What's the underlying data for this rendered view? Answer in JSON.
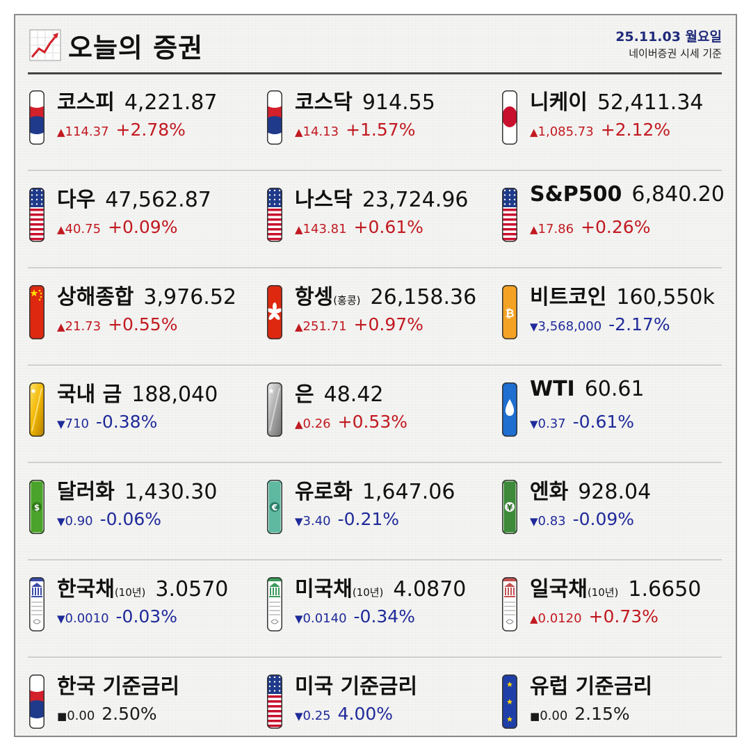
{
  "header": {
    "title": "오늘의 증권",
    "date": "25.11.03 월요일",
    "source": "네이버증권 시세 기준"
  },
  "items": [
    {
      "name": "코스피",
      "suffix": "",
      "value": "4,221.87",
      "arrow": "▲",
      "change": "114.37",
      "pct": "+2.78%",
      "dir": "up",
      "icon": "korea-flag-icon"
    },
    {
      "name": "코스닥",
      "suffix": "",
      "value": "914.55",
      "arrow": "▲",
      "change": "14.13",
      "pct": "+1.57%",
      "dir": "up",
      "icon": "korea-flag-icon"
    },
    {
      "name": "니케이",
      "suffix": "",
      "value": "52,411.34",
      "arrow": "▲",
      "change": "1,085.73",
      "pct": "+2.12%",
      "dir": "up",
      "icon": "japan-flag-icon"
    },
    {
      "name": "다우",
      "suffix": "",
      "value": "47,562.87",
      "arrow": "▲",
      "change": "40.75",
      "pct": "+0.09%",
      "dir": "up",
      "icon": "usa-flag-icon"
    },
    {
      "name": "나스닥",
      "suffix": "",
      "value": "23,724.96",
      "arrow": "▲",
      "change": "143.81",
      "pct": "+0.61%",
      "dir": "up",
      "icon": "usa-flag-icon"
    },
    {
      "name": "S&P500",
      "suffix": "",
      "value": "6,840.20",
      "arrow": "▲",
      "change": "17.86",
      "pct": "+0.26%",
      "dir": "up",
      "icon": "usa-flag-icon"
    },
    {
      "name": "상해종합",
      "suffix": "",
      "value": "3,976.52",
      "arrow": "▲",
      "change": "21.73",
      "pct": "+0.55%",
      "dir": "up",
      "icon": "china-flag-icon"
    },
    {
      "name": "항셍",
      "suffix": "(홍콩)",
      "value": "26,158.36",
      "arrow": "▲",
      "change": "251.71",
      "pct": "+0.97%",
      "dir": "up",
      "icon": "hongkong-flag-icon"
    },
    {
      "name": "비트코인",
      "suffix": "",
      "value": "160,550k",
      "arrow": "▼",
      "change": "3,568,000",
      "pct": "-2.17%",
      "dir": "down",
      "icon": "bitcoin-icon"
    },
    {
      "name": "국내 금",
      "suffix": "",
      "value": "188,040",
      "arrow": "▼",
      "change": "710",
      "pct": "-0.38%",
      "dir": "down",
      "icon": "gold-bar-icon"
    },
    {
      "name": "은",
      "suffix": "",
      "value": "48.42",
      "arrow": "▲",
      "change": "0.26",
      "pct": "+0.53%",
      "dir": "up",
      "icon": "silver-bar-icon"
    },
    {
      "name": "WTI",
      "suffix": "",
      "value": "60.61",
      "arrow": "▼",
      "change": "0.37",
      "pct": "-0.61%",
      "dir": "down",
      "icon": "oil-drop-icon"
    },
    {
      "name": "달러화",
      "suffix": "",
      "value": "1,430.30",
      "arrow": "▼",
      "change": "0.90",
      "pct": "-0.06%",
      "dir": "down",
      "icon": "dollar-bill-icon"
    },
    {
      "name": "유로화",
      "suffix": "",
      "value": "1,647.06",
      "arrow": "▼",
      "change": "3.40",
      "pct": "-0.21%",
      "dir": "down",
      "icon": "euro-bill-icon"
    },
    {
      "name": "엔화",
      "suffix": "",
      "value": "928.04",
      "arrow": "▼",
      "change": "0.83",
      "pct": "-0.09%",
      "dir": "down",
      "icon": "yen-bill-icon"
    },
    {
      "name": "한국채",
      "suffix": "(10년)",
      "value": "3.0570",
      "arrow": "▼",
      "change": "0.0010",
      "pct": "-0.03%",
      "dir": "down",
      "icon": "korea-bond-icon"
    },
    {
      "name": "미국채",
      "suffix": "(10년)",
      "value": "4.0870",
      "arrow": "▼",
      "change": "0.0140",
      "pct": "-0.34%",
      "dir": "down",
      "icon": "us-bond-icon"
    },
    {
      "name": "일국채",
      "suffix": "(10년)",
      "value": "1.6650",
      "arrow": "▲",
      "change": "0.0120",
      "pct": "+0.73%",
      "dir": "up",
      "icon": "japan-bond-icon"
    },
    {
      "name": "한국 기준금리",
      "suffix": "",
      "value": "",
      "arrow": "■",
      "change": "0.00",
      "pct": "2.50%",
      "dir": "flat",
      "icon": "korea-flag-icon"
    },
    {
      "name": "미국 기준금리",
      "suffix": "",
      "value": "",
      "arrow": "▼",
      "change": "0.25",
      "pct": "4.00%",
      "dir": "down",
      "icon": "usa-flag-icon"
    },
    {
      "name": "유럽 기준금리",
      "suffix": "",
      "value": "",
      "arrow": "■",
      "change": "0.00",
      "pct": "2.15%",
      "dir": "flat",
      "icon": "eu-flag-icon"
    }
  ],
  "colors": {
    "up": "#c11920",
    "down": "#1f2a9a",
    "flat": "#1a1a1a",
    "title_blue": "#1f2a7a"
  }
}
